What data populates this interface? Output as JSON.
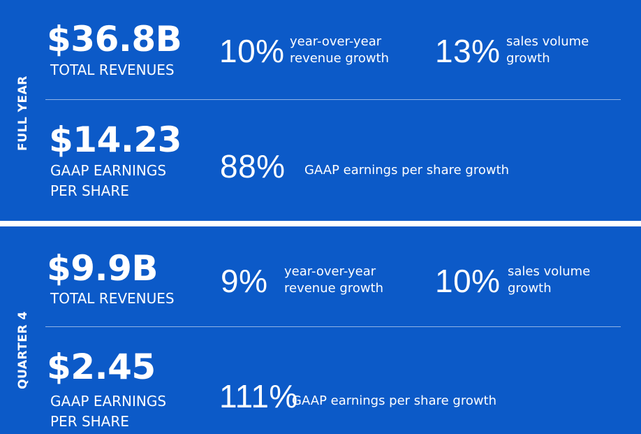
{
  "colors": {
    "panel_background": "#0c5ac8",
    "separator": "#ffffff",
    "text": "#ffffff"
  },
  "full_year": {
    "section_label": "FULL YEAR",
    "revenues": {
      "value": "$36.8B",
      "caption": "TOTAL REVENUES",
      "stats": [
        {
          "percent": "10%",
          "line1": "year-over-year",
          "line2": "revenue growth"
        },
        {
          "percent": "13%",
          "line1": "sales volume",
          "line2": "growth"
        }
      ]
    },
    "eps": {
      "value": "$14.23",
      "caption_line1": "GAAP EARNINGS",
      "caption_line2": "PER SHARE",
      "stat": {
        "percent": "88%",
        "text": "GAAP earnings per share growth"
      }
    }
  },
  "quarter4": {
    "section_label": "QUARTER 4",
    "revenues": {
      "value": "$9.9B",
      "caption": "TOTAL REVENUES",
      "stats": [
        {
          "percent": "9%",
          "line1": "year-over-year",
          "line2": "revenue growth"
        },
        {
          "percent": "10%",
          "line1": "sales volume",
          "line2": "growth"
        }
      ]
    },
    "eps": {
      "value": "$2.45",
      "caption_line1": "GAAP EARNINGS",
      "caption_line2": "PER SHARE",
      "stat": {
        "percent": "111%",
        "text": "GAAP earnings per share growth"
      }
    }
  }
}
